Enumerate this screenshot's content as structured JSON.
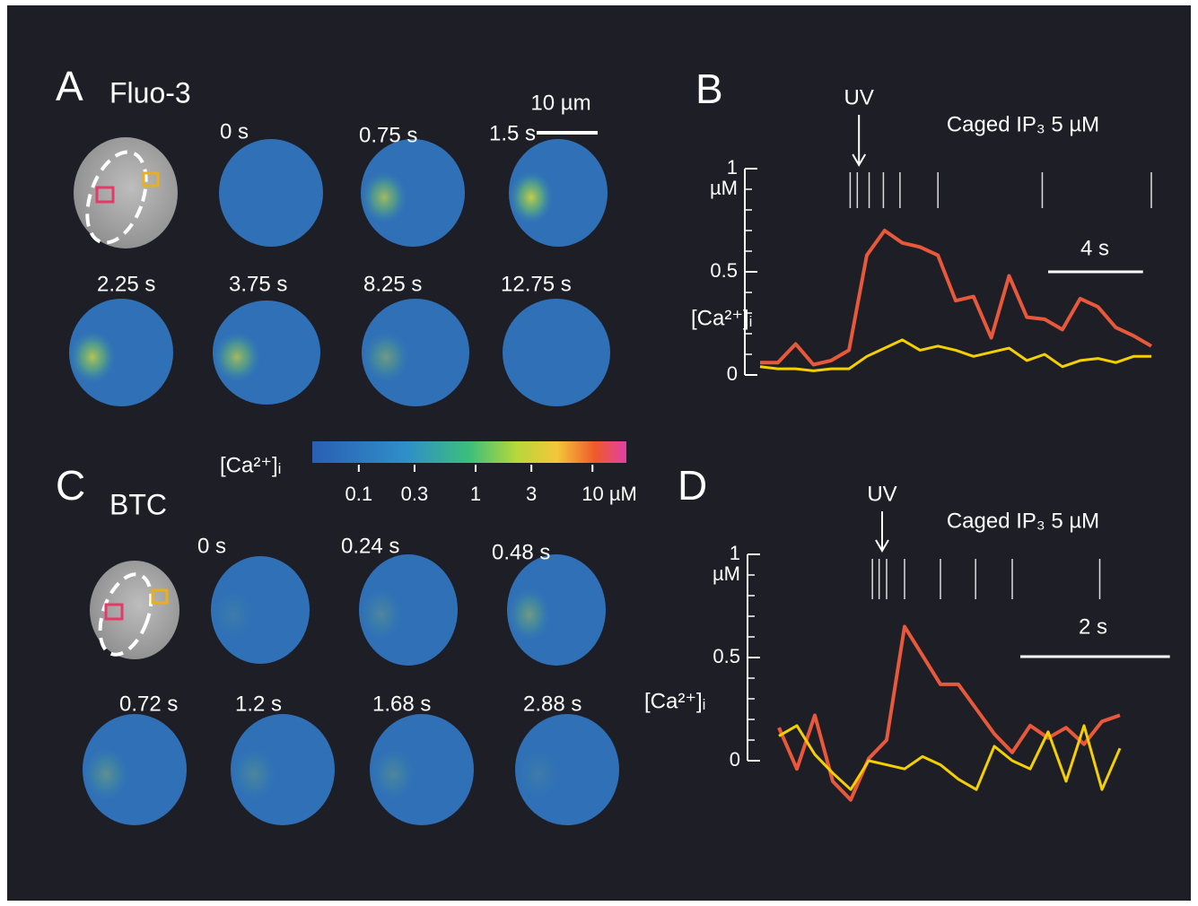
{
  "panels": [
    {
      "label": "A",
      "title": "Fluo-3",
      "scale_bar": "10 µm",
      "frames": [
        "0 s",
        "0.75 s",
        "1.5 s",
        "2.25 s",
        "3.75 s",
        "8.25 s",
        "12.75 s"
      ]
    },
    {
      "label": "C",
      "title": "BTC",
      "frames": [
        "0 s",
        "0.24 s",
        "0.48 s",
        "0.72 s",
        "1.2 s",
        "1.68 s",
        "2.88 s"
      ]
    }
  ],
  "colorbar": {
    "label": "[Ca²⁺]ᵢ",
    "scale": "log",
    "lim": [
      0.04,
      19.5
    ],
    "ticks": [
      0.1,
      0.3,
      1,
      3,
      {
        "value": 10,
        "label": "10 µM"
      }
    ]
  },
  "chart_data": [
    {
      "type": "line",
      "panel": "B",
      "ylabel": "[Ca²⁺]ᵢ",
      "yunit": "µM",
      "yunit_at": 0.9,
      "annotation": "Caged IP₃  5 µM",
      "uv": {
        "label": "UV",
        "x": 4.17
      },
      "events": [
        3.8,
        4.1,
        4.6,
        5.2,
        5.9,
        7.5,
        11.9,
        16.5
      ],
      "scale_bar": {
        "value": 4,
        "label": "4 s"
      },
      "xlim": [
        0,
        16.5
      ],
      "ylim": [
        0,
        1
      ],
      "yticks": [
        0,
        0.5,
        1
      ],
      "yminor": [
        0.1,
        0.2,
        0.3,
        0.4,
        0.6,
        0.7,
        0.8,
        0.9
      ],
      "x": [
        0,
        0.75,
        1.5,
        2.25,
        3,
        3.75,
        4.5,
        5.25,
        6,
        6.75,
        7.5,
        8.25,
        9,
        9.75,
        10.5,
        11.25,
        12,
        12.75,
        13.5,
        14.25,
        15,
        15.75,
        16.5
      ],
      "series": [
        {
          "color": "#e8583a",
          "values": [
            0.06,
            0.06,
            0.15,
            0.05,
            0.07,
            0.12,
            0.58,
            0.7,
            0.64,
            0.62,
            0.58,
            0.36,
            0.38,
            0.18,
            0.48,
            0.28,
            0.27,
            0.22,
            0.37,
            0.33,
            0.23,
            0.19,
            0.14
          ]
        },
        {
          "color": "#f5d000",
          "values": [
            0.04,
            0.03,
            0.03,
            0.02,
            0.03,
            0.03,
            0.09,
            0.13,
            0.17,
            0.12,
            0.14,
            0.12,
            0.09,
            0.11,
            0.13,
            0.07,
            0.1,
            0.04,
            0.07,
            0.08,
            0.06,
            0.09,
            0.09
          ]
        }
      ]
    },
    {
      "type": "line",
      "panel": "D",
      "ylabel": "[Ca²⁺]ᵢ",
      "yunit": "µM",
      "yunit_at": 0.9,
      "annotation": "Caged IP₃  5 µM",
      "uv": {
        "label": "UV",
        "x": 1.38
      },
      "events": [
        1.25,
        1.34,
        1.44,
        1.68,
        2.16,
        2.63,
        3.12,
        4.29
      ],
      "scale_bar": {
        "value": 2,
        "label": "2 s"
      },
      "xlim": [
        0,
        4.56
      ],
      "ylim": [
        0,
        1
      ],
      "yticks": [
        0,
        0.5,
        1
      ],
      "yminor": [
        0.1,
        0.2,
        0.3,
        0.4,
        0.6,
        0.7,
        0.8,
        0.9
      ],
      "x": [
        0,
        0.24,
        0.48,
        0.72,
        0.96,
        1.2,
        1.44,
        1.68,
        1.92,
        2.16,
        2.4,
        2.64,
        2.88,
        3.12,
        3.36,
        3.6,
        3.84,
        4.08,
        4.32,
        4.56
      ],
      "series": [
        {
          "color": "#e8583a",
          "values": [
            0.16,
            -0.04,
            0.22,
            -0.1,
            -0.19,
            0.01,
            0.1,
            0.65,
            0.51,
            0.37,
            0.37,
            0.25,
            0.13,
            0.04,
            0.17,
            0.11,
            0.16,
            0.08,
            0.19,
            0.22
          ]
        },
        {
          "color": "#f5d000",
          "values": [
            0.12,
            0.17,
            0.03,
            -0.06,
            -0.14,
            0,
            -0.02,
            -0.04,
            0.02,
            -0.02,
            -0.09,
            -0.14,
            0.07,
            0,
            -0.04,
            0.14,
            -0.1,
            0.17,
            -0.14,
            0.06
          ]
        }
      ]
    }
  ]
}
